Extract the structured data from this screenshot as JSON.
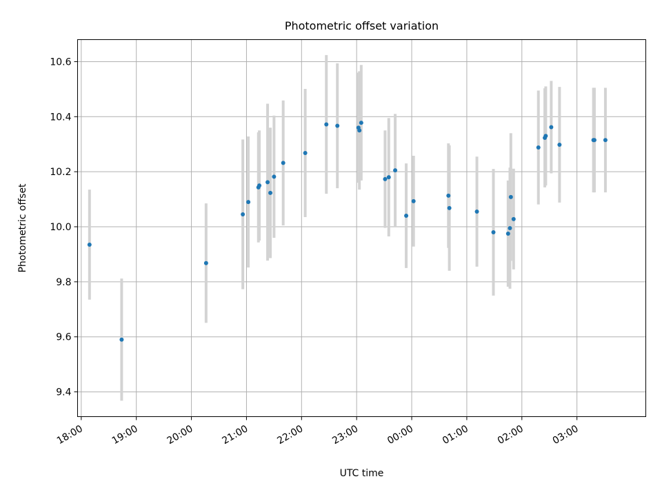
{
  "chart_data": {
    "type": "scatter",
    "title": "Photometric offset variation",
    "xlabel": "UTC time",
    "ylabel": "Photometric offset",
    "x_tick_labels": [
      "18:00",
      "19:00",
      "20:00",
      "21:00",
      "22:00",
      "23:00",
      "00:00",
      "01:00",
      "02:00",
      "03:00"
    ],
    "y_tick_values": [
      9.4,
      9.6,
      9.8,
      10.0,
      10.2,
      10.4,
      10.6
    ],
    "y_tick_labels": [
      "9.4",
      "9.6",
      "9.8",
      "10.0",
      "10.2",
      "10.4",
      "10.6"
    ],
    "xlim": [
      "17:56",
      "04:15"
    ],
    "ylim": [
      9.31,
      10.68
    ],
    "grid": true,
    "colors": {
      "points": "#1f77b4",
      "error_bars": "#d3d3d3",
      "grid": "#b0b0b0"
    },
    "points": [
      {
        "t": "18:09",
        "y": 9.935,
        "err": 0.2
      },
      {
        "t": "18:44",
        "y": 9.59,
        "err": 0.222
      },
      {
        "t": "20:16",
        "y": 9.868,
        "err": 0.217
      },
      {
        "t": "20:56",
        "y": 10.045,
        "err": 0.272
      },
      {
        "t": "21:02",
        "y": 10.09,
        "err": 0.238
      },
      {
        "t": "21:13",
        "y": 10.143,
        "err": 0.2
      },
      {
        "t": "21:14",
        "y": 10.15,
        "err": 0.2
      },
      {
        "t": "21:23",
        "y": 10.162,
        "err": 0.285
      },
      {
        "t": "21:26",
        "y": 10.123,
        "err": 0.237
      },
      {
        "t": "21:30",
        "y": 10.182,
        "err": 0.222
      },
      {
        "t": "21:40",
        "y": 10.232,
        "err": 0.227
      },
      {
        "t": "22:04",
        "y": 10.268,
        "err": 0.233
      },
      {
        "t": "22:27",
        "y": 10.372,
        "err": 0.252
      },
      {
        "t": "22:39",
        "y": 10.367,
        "err": 0.227
      },
      {
        "t": "23:02",
        "y": 10.36,
        "err": 0.2
      },
      {
        "t": "23:03",
        "y": 10.35,
        "err": 0.215
      },
      {
        "t": "23:05",
        "y": 10.378,
        "err": 0.21
      },
      {
        "t": "23:31",
        "y": 10.173,
        "err": 0.177
      },
      {
        "t": "23:35",
        "y": 10.18,
        "err": 0.215
      },
      {
        "t": "23:42",
        "y": 10.205,
        "err": 0.205
      },
      {
        "t": "23:54",
        "y": 10.04,
        "err": 0.19
      },
      {
        "t": "00:02",
        "y": 10.093,
        "err": 0.165
      },
      {
        "t": "00:40",
        "y": 10.113,
        "err": 0.19
      },
      {
        "t": "00:41",
        "y": 10.068,
        "err": 0.228
      },
      {
        "t": "01:11",
        "y": 10.055,
        "err": 0.2
      },
      {
        "t": "01:29",
        "y": 9.98,
        "err": 0.23
      },
      {
        "t": "01:45",
        "y": 9.975,
        "err": 0.193
      },
      {
        "t": "01:47",
        "y": 9.995,
        "err": 0.22
      },
      {
        "t": "01:48",
        "y": 10.108,
        "err": 0.232
      },
      {
        "t": "01:51",
        "y": 10.028,
        "err": 0.183
      },
      {
        "t": "02:18",
        "y": 10.288,
        "err": 0.207
      },
      {
        "t": "02:25",
        "y": 10.323,
        "err": 0.18
      },
      {
        "t": "02:26",
        "y": 10.33,
        "err": 0.18
      },
      {
        "t": "02:32",
        "y": 10.362,
        "err": 0.168
      },
      {
        "t": "02:41",
        "y": 10.298,
        "err": 0.21
      },
      {
        "t": "03:18",
        "y": 10.315,
        "err": 0.19
      },
      {
        "t": "03:19",
        "y": 10.315,
        "err": 0.19
      },
      {
        "t": "03:31",
        "y": 10.315,
        "err": 0.19
      }
    ]
  }
}
